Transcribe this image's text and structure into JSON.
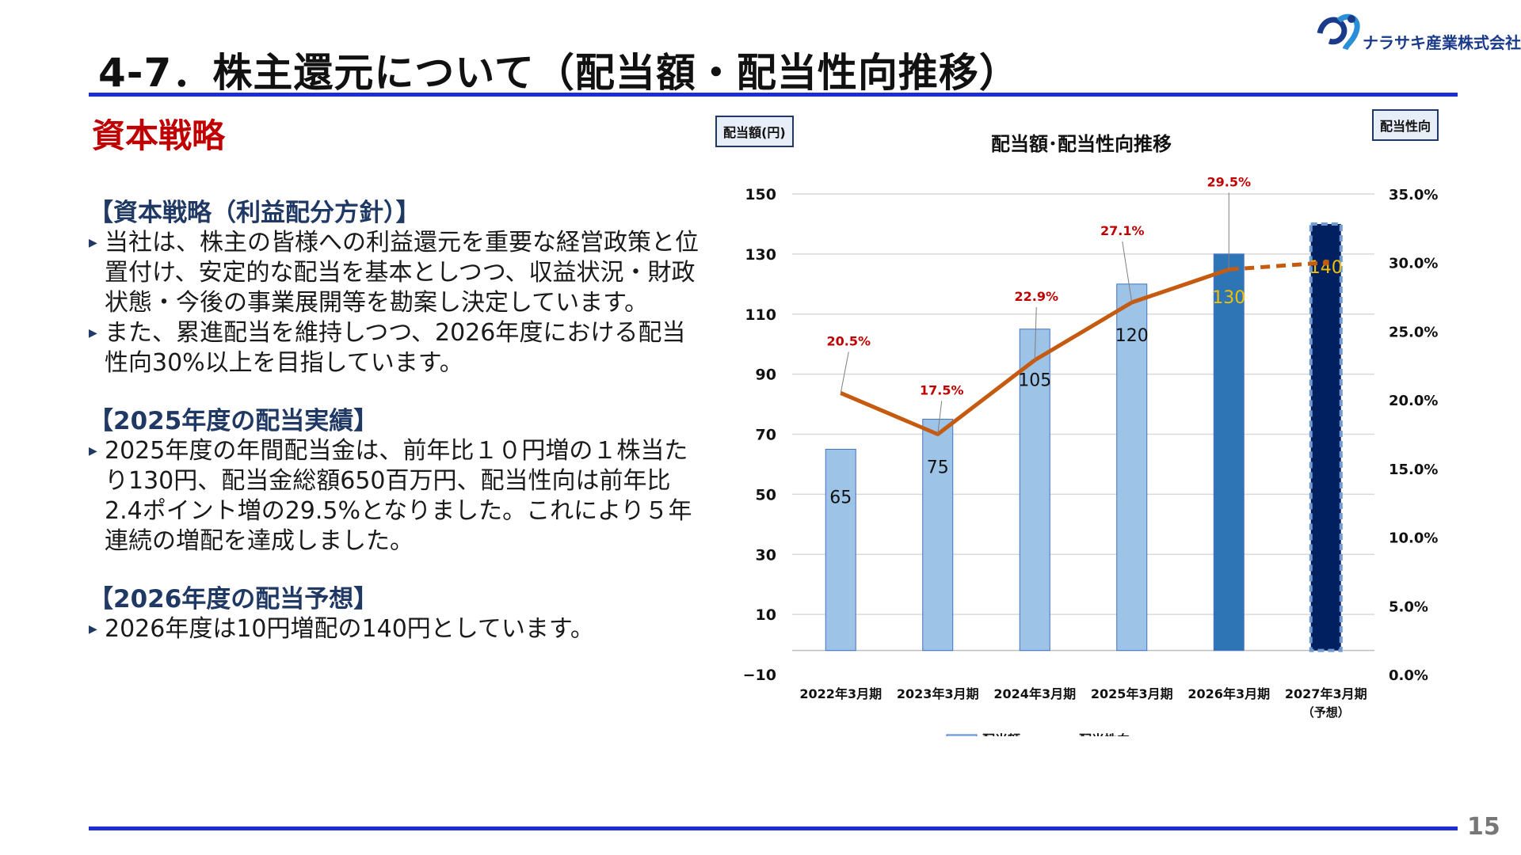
{
  "header": {
    "title": "4-7．株主還元について（配当額・配当性向推移）",
    "logo_text": "ナラサキ産業株式会社",
    "page_number": "15"
  },
  "section_title": "資本戦略",
  "left": {
    "policy_heading": "【資本戦略（利益配分方針）】",
    "policy_bullets": [
      "当社は、株主の皆様への利益還元を重要な経営政策と位置付け、安定的な配当を基本としつつ、収益状況・財政状態・今後の事業展開等を勘案し決定しています。",
      "また、累進配当を維持しつつ、2026年度における配当性向30%以上を目指しています。"
    ],
    "results_heading": "【2025年度の配当実績】",
    "results_bullets": [
      "2025年度の年間配当金は、前年比１０円増の１株当たり130円、配当金総額650百万円、配当性向は前年比2.4ポイント増の29.5%となりました。これにより５年連続の増配を達成しました。"
    ],
    "forecast_heading": "【2026年度の配当予想】",
    "forecast_bullets": [
      "2026年度は10円増配の140円としています。"
    ]
  },
  "chart_box_left": "配当額(円)",
  "chart_box_right": "配当性向",
  "chart_data": {
    "type": "bar",
    "title": "配当額･配当性向推移",
    "categories": [
      "2022年3月期",
      "2023年3月期",
      "2024年3月期",
      "2025年3月期",
      "2026年3月期",
      "2027年3月期"
    ],
    "category_sub": [
      "",
      "",
      "",
      "",
      "",
      "（予想）"
    ],
    "series": [
      {
        "name": "配当額",
        "type": "bar",
        "values": [
          65,
          75,
          105,
          120,
          130,
          140
        ],
        "labels": [
          "65",
          "75",
          "105",
          "120",
          "130",
          "140"
        ],
        "colors": [
          "#9dc3e6",
          "#9dc3e6",
          "#9dc3e6",
          "#9dc3e6",
          "#2e75b6",
          "#002060"
        ]
      },
      {
        "name": "配当性向",
        "type": "line",
        "values": [
          20.5,
          17.5,
          22.9,
          27.1,
          29.5,
          30.0
        ],
        "labels": [
          "20.5%",
          "17.5%",
          "22.9%",
          "27.1%",
          "29.5%",
          ""
        ],
        "color": "#c55a11",
        "dashed_last_segment": true
      }
    ],
    "y_left": {
      "ylim": [
        -10,
        150
      ],
      "ticks": [
        "−10",
        "10",
        "30",
        "50",
        "70",
        "90",
        "110",
        "130",
        "150"
      ]
    },
    "y_right": {
      "ylim": [
        0,
        35
      ],
      "ticks": [
        "0.0%",
        "5.0%",
        "10.0%",
        "15.0%",
        "20.0%",
        "25.0%",
        "30.0%",
        "35.0%"
      ]
    },
    "grid": true,
    "legend_position": "bottom"
  }
}
